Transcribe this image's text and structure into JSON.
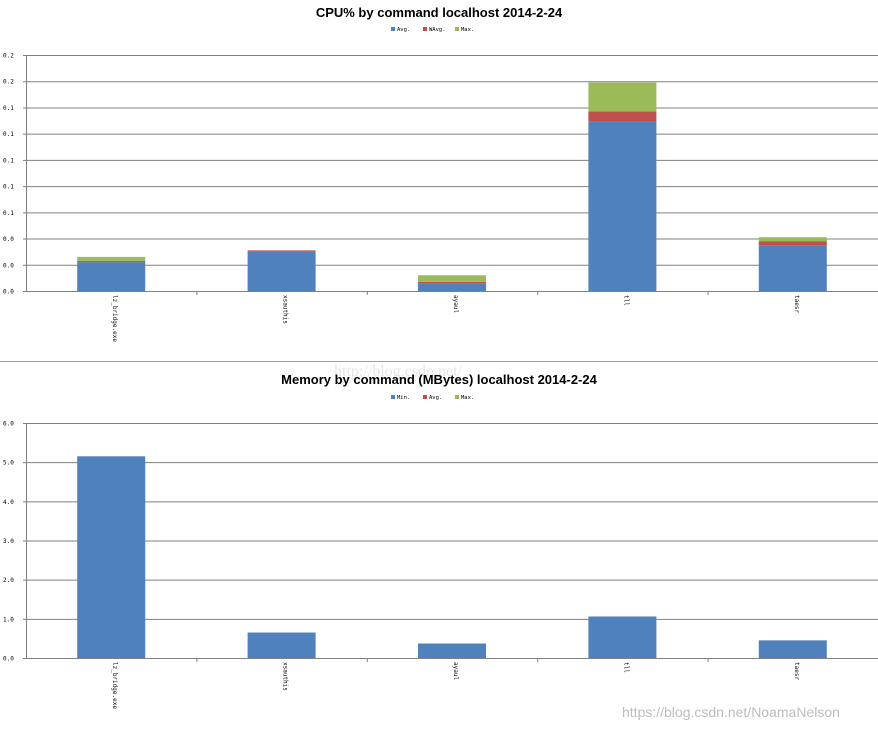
{
  "watermarks": {
    "bottom": "https://blog.csdn.net/NoamaNelson",
    "middle": "http://blog.csdn.net/"
  },
  "colors": {
    "series1": "#4f81bd",
    "series2": "#c0504d",
    "series3": "#9bbb59",
    "grid": "#808080",
    "axis": "#808080"
  },
  "chart_data": [
    {
      "type": "bar",
      "stacked": true,
      "title": "CPU% by command localhost  2014-2-24",
      "categories": [
        "lz_bridge.exe",
        "xsauthis",
        "ayaul",
        "tll",
        "taesr"
      ],
      "series": [
        {
          "name": "Avg.",
          "values": [
            0.022,
            0.03,
            0.006,
            0.129,
            0.035
          ]
        },
        {
          "name": "WAvg.",
          "values": [
            0.001,
            0.001,
            0.001,
            0.008,
            0.003
          ]
        },
        {
          "name": "Max.",
          "values": [
            0.003,
            0.0,
            0.005,
            0.022,
            0.003
          ]
        }
      ],
      "ylim": [
        0,
        0.18
      ],
      "yticks": [
        0,
        0.02,
        0.04,
        0.06,
        0.08,
        0.1,
        0.12,
        0.14,
        0.16,
        0.18
      ],
      "ytick_labels": [
        "0.0",
        "0.0",
        "0.0",
        "0.1",
        "0.1",
        "0.1",
        "0.1",
        "0.1",
        "0.2",
        "0.2"
      ],
      "legend_position": "top-center",
      "grid": true
    },
    {
      "type": "bar",
      "stacked": true,
      "title": "Memory by command (MBytes) localhost  2014-2-24",
      "categories": [
        "lz_bridge.exe",
        "xsauthis",
        "ayaul",
        "tll",
        "taesr"
      ],
      "series": [
        {
          "name": "Min.",
          "values": [
            5.15,
            0.65,
            0.37,
            1.06,
            0.45
          ]
        },
        {
          "name": "Avg.",
          "values": [
            0,
            0,
            0,
            0,
            0
          ]
        },
        {
          "name": "Max.",
          "values": [
            0,
            0,
            0,
            0,
            0
          ]
        }
      ],
      "ylim": [
        0,
        6
      ],
      "yticks": [
        0,
        1,
        2,
        3,
        4,
        5,
        6
      ],
      "ytick_labels": [
        "0.0",
        "1.0",
        "2.0",
        "3.0",
        "4.0",
        "5.0",
        "6.0"
      ],
      "legend_position": "top-center",
      "grid": true
    }
  ]
}
